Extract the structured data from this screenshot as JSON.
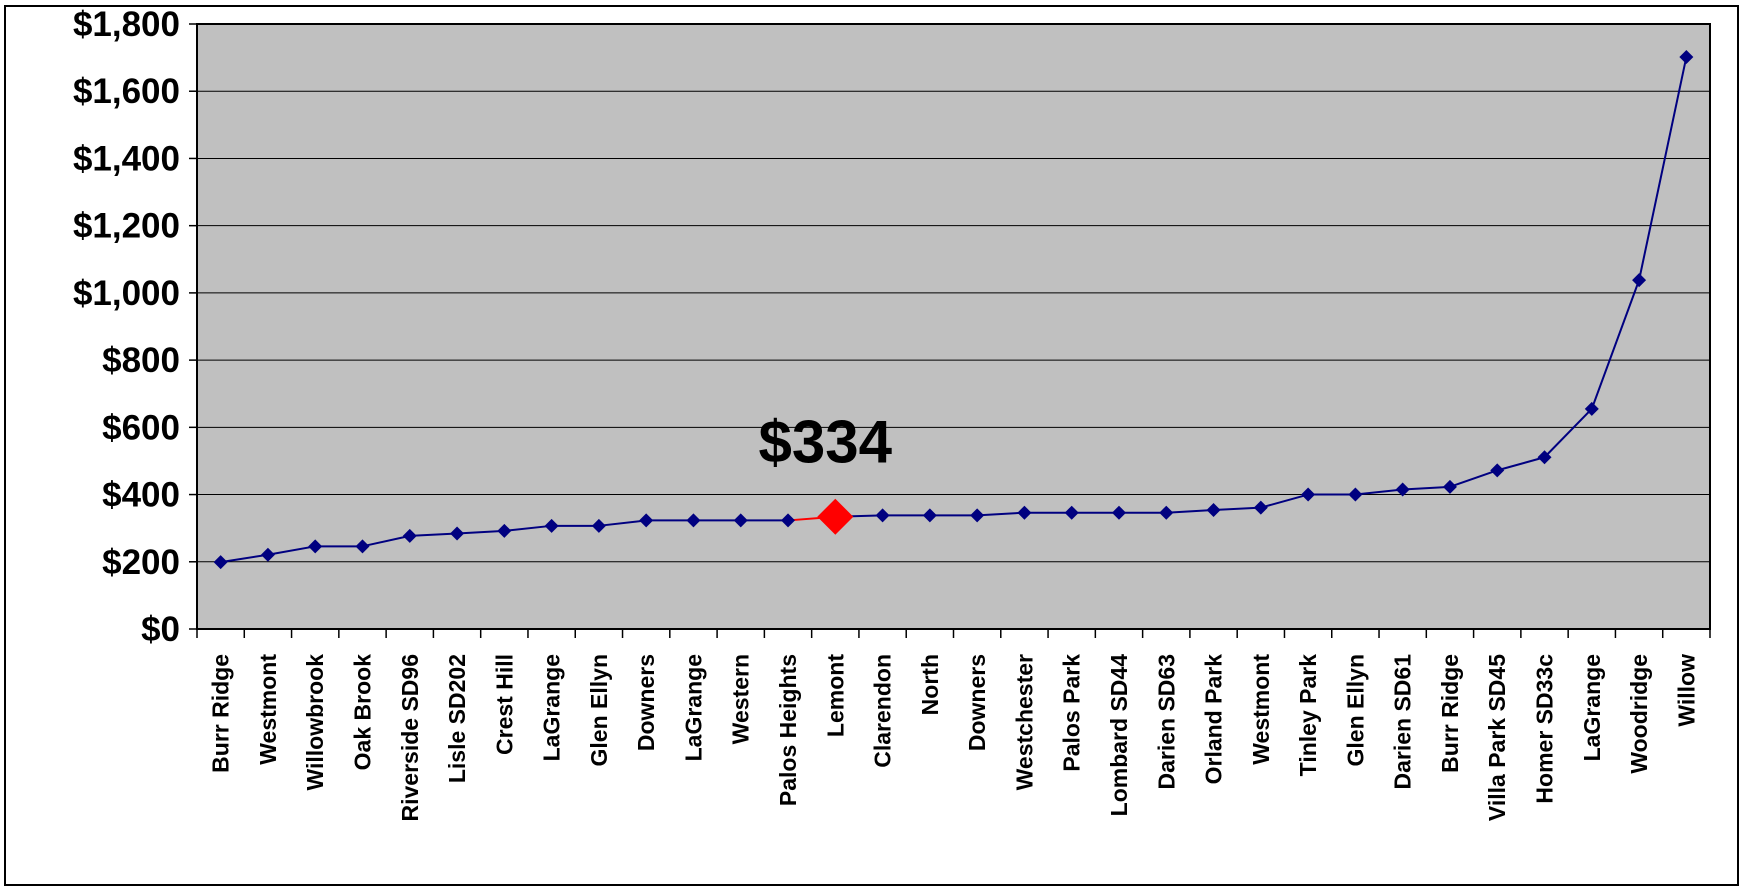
{
  "chart_data": {
    "type": "line",
    "categories": [
      "Burr Ridge",
      "Westmont",
      "Willowbrook",
      "Oak Brook",
      "Riverside SD96",
      "Lisle SD202",
      "Crest Hill",
      "LaGrange",
      "Glen Ellyn",
      "Downers",
      "LaGrange",
      "Western",
      "Palos Heights",
      "Lemont",
      "Clarendon",
      "North",
      "Downers",
      "Westchester",
      "Palos Park",
      "Lombard SD44",
      "Darien SD63",
      "Orland Park",
      "Westmont",
      "Tinley Park",
      "Glen Ellyn",
      "Darien SD61",
      "Burr Ridge",
      "Villa Park SD45",
      "Homer SD33c",
      "LaGrange",
      "Woodridge",
      "Willow"
    ],
    "values": [
      199,
      221,
      246,
      246,
      277,
      284,
      292,
      307,
      307,
      323,
      323,
      323,
      323,
      334,
      338,
      338,
      338,
      346,
      346,
      346,
      346,
      354,
      361,
      400,
      400,
      415,
      423,
      472,
      511,
      655,
      1038,
      1702
    ],
    "ylim": [
      0,
      1800
    ],
    "yticks": [
      0,
      200,
      400,
      600,
      800,
      1000,
      1200,
      1400,
      1600,
      1800
    ],
    "ytick_labels": [
      "$0",
      "$200",
      "$400",
      "$600",
      "$800",
      "$1,000",
      "$1,200",
      "$1,400",
      "$1,600",
      "$1,800"
    ],
    "highlight_index": 13,
    "highlight_label": "$334",
    "grid": true,
    "plot_background": "#c0c0c0",
    "line_color": "#000080",
    "highlight_color": "#ff0000",
    "gridline_color": "#000000",
    "frame_color": "#000000"
  }
}
